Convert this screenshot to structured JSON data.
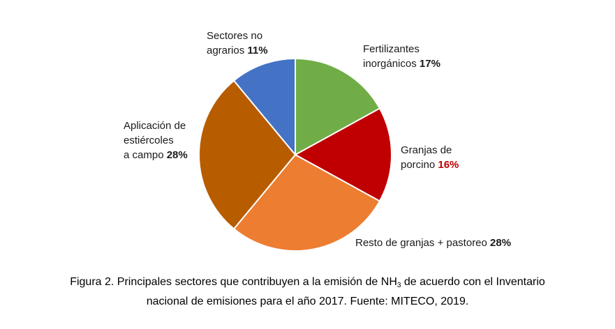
{
  "chart_data": {
    "type": "pie",
    "title": "",
    "slices": [
      {
        "lines": [
          "Fertilizantes",
          "inorgánicos"
        ],
        "percent_label": "17%",
        "value": 17,
        "color": "#70ad47",
        "pct_color": "#1a1a1a"
      },
      {
        "lines": [
          "Granjas de",
          "porcino"
        ],
        "percent_label": "16%",
        "value": 16,
        "color": "#c00000",
        "pct_color": "#c00000"
      },
      {
        "lines": [
          "Resto de granjas + pastoreo"
        ],
        "percent_label": "28%",
        "value": 28,
        "color": "#ed7d31",
        "pct_color": "#1a1a1a"
      },
      {
        "lines": [
          "Aplicación de",
          "estiércoles",
          "a campo"
        ],
        "percent_label": "28%",
        "value": 28,
        "color": "#b85c00",
        "pct_color": "#1a1a1a"
      },
      {
        "lines": [
          "Sectores no",
          "agrarios"
        ],
        "percent_label": "11%",
        "value": 11,
        "color": "#4472c4",
        "pct_color": "#1a1a1a"
      }
    ]
  },
  "caption": {
    "line1_pre": "Figura 2. Principales sectores que contribuyen a la emisión de NH",
    "line1_sub": "3",
    "line1_post": " de acuerdo con el Inventario",
    "line2": "nacional de emisiones para el año 2017. Fuente: MITECO, 2019."
  }
}
